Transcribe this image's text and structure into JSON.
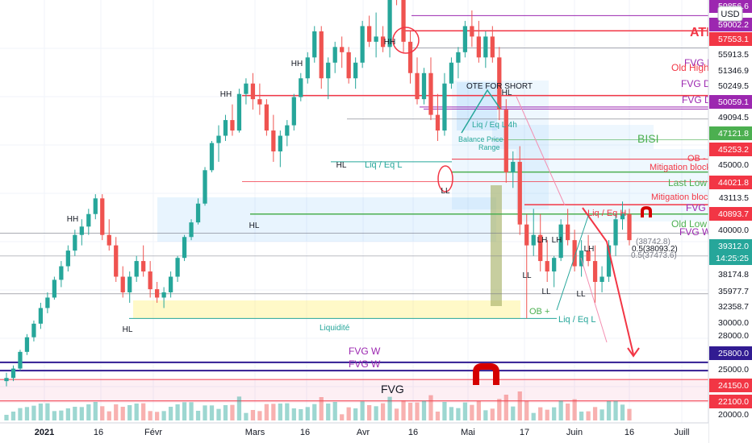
{
  "currency": "USD",
  "chart_data": {
    "type": "candlestick",
    "price_range": [
      20000,
      60500
    ],
    "x_labels": [
      "2021",
      "16",
      "Févr",
      "Mars",
      "16",
      "Avr",
      "16",
      "Mai",
      "17",
      "Juin",
      "16",
      "Juill"
    ],
    "candles": [
      [
        24000,
        24800,
        23500,
        24300
      ],
      [
        24300,
        25500,
        24000,
        25200
      ],
      [
        25200,
        27000,
        25000,
        26800
      ],
      [
        26800,
        28500,
        26500,
        28200
      ],
      [
        28200,
        29800,
        27800,
        29500
      ],
      [
        29500,
        31500,
        29000,
        31000
      ],
      [
        31000,
        32500,
        30500,
        32000
      ],
      [
        32000,
        34000,
        31800,
        33700
      ],
      [
        33700,
        35500,
        33000,
        35000
      ],
      [
        35000,
        37000,
        34500,
        36500
      ],
      [
        36500,
        38500,
        36000,
        38000
      ],
      [
        38000,
        39500,
        37000,
        38800
      ],
      [
        38800,
        40500,
        38000,
        40000
      ],
      [
        40000,
        41900,
        39500,
        41500
      ],
      [
        41500,
        41900,
        37500,
        38000
      ],
      [
        38000,
        39500,
        36500,
        37000
      ],
      [
        37000,
        37800,
        33500,
        34000
      ],
      [
        34000,
        35000,
        32000,
        32500
      ],
      [
        32500,
        34500,
        31500,
        34000
      ],
      [
        34000,
        36000,
        33500,
        35500
      ],
      [
        35500,
        37000,
        34000,
        34500
      ],
      [
        34500,
        35500,
        32000,
        32800
      ],
      [
        32800,
        33500,
        31500,
        32000
      ],
      [
        32000,
        33000,
        31000,
        32500
      ],
      [
        32500,
        34500,
        32000,
        34000
      ],
      [
        34000,
        36000,
        33500,
        35800
      ],
      [
        35800,
        38000,
        35500,
        37800
      ],
      [
        37800,
        39500,
        37500,
        39200
      ],
      [
        39200,
        41500,
        39000,
        41000
      ],
      [
        41000,
        44500,
        40800,
        44200
      ],
      [
        44200,
        47000,
        44000,
        46800
      ],
      [
        46800,
        48500,
        45000,
        47500
      ],
      [
        47500,
        49500,
        47000,
        49000
      ],
      [
        49000,
        50500,
        47500,
        48000
      ],
      [
        48000,
        52000,
        47800,
        51500
      ],
      [
        51500,
        53000,
        50500,
        52500
      ],
      [
        52500,
        53500,
        50000,
        51000
      ],
      [
        51000,
        52500,
        49500,
        50500
      ],
      [
        50500,
        51000,
        47500,
        48000
      ],
      [
        48000,
        49500,
        45000,
        46000
      ],
      [
        46000,
        48000,
        44500,
        47500
      ],
      [
        47500,
        49000,
        46500,
        48500
      ],
      [
        48500,
        51500,
        48000,
        51200
      ],
      [
        51200,
        53500,
        50800,
        53000
      ],
      [
        53000,
        55500,
        52500,
        55000
      ],
      [
        55000,
        58000,
        54500,
        57500
      ],
      [
        57500,
        58000,
        52000,
        53000
      ],
      [
        53000,
        55000,
        51000,
        54500
      ],
      [
        54500,
        56500,
        53500,
        56000
      ],
      [
        56000,
        57000,
        54000,
        55500
      ],
      [
        55500,
        56000,
        52500,
        53000
      ],
      [
        53000,
        55000,
        52000,
        54500
      ],
      [
        54500,
        58500,
        54000,
        58000
      ],
      [
        58000,
        59000,
        56000,
        56500
      ],
      [
        56500,
        59300,
        55000,
        57000
      ],
      [
        57000,
        58000,
        55500,
        56000
      ],
      [
        56000,
        64000,
        55000,
        63000
      ],
      [
        63000,
        64800,
        60000,
        61000
      ],
      [
        61000,
        62000,
        55500,
        56500
      ],
      [
        56500,
        57500,
        52500,
        53500
      ],
      [
        53500,
        55000,
        50500,
        51000
      ],
      [
        51000,
        54000,
        50500,
        53500
      ],
      [
        53500,
        55000,
        49000,
        49500
      ],
      [
        49500,
        51500,
        47000,
        48000
      ],
      [
        48000,
        53500,
        47500,
        52500
      ],
      [
        52500,
        55000,
        52000,
        54500
      ],
      [
        54500,
        56000,
        53000,
        55500
      ],
      [
        55500,
        58500,
        55000,
        58000
      ],
      [
        58000,
        59500,
        56000,
        57000
      ],
      [
        57000,
        58500,
        54500,
        55000
      ],
      [
        55000,
        57500,
        54000,
        57000
      ],
      [
        57000,
        58000,
        54500,
        55000
      ],
      [
        55000,
        56000,
        49000,
        50000
      ],
      [
        50000,
        51000,
        43000,
        44000
      ],
      [
        44000,
        46000,
        42500,
        45000
      ],
      [
        45000,
        46500,
        38000,
        39000
      ],
      [
        39000,
        40000,
        30000,
        37000
      ],
      [
        37000,
        40500,
        36000,
        38000
      ],
      [
        38000,
        40000,
        34500,
        35500
      ],
      [
        35500,
        37500,
        33500,
        34500
      ],
      [
        34500,
        36000,
        33000,
        35800
      ],
      [
        35800,
        39500,
        35500,
        39000
      ],
      [
        39000,
        40500,
        37000,
        37500
      ],
      [
        37500,
        38500,
        34500,
        35000
      ],
      [
        35000,
        37500,
        34000,
        36500
      ],
      [
        36500,
        38000,
        35000,
        35500
      ],
      [
        35500,
        37000,
        31500,
        33500
      ],
      [
        33500,
        35000,
        32500,
        34000
      ],
      [
        34000,
        37500,
        33500,
        37000
      ],
      [
        37000,
        40000,
        36000,
        39500
      ],
      [
        39500,
        41200,
        38500,
        40000
      ],
      [
        40000,
        40500,
        37000,
        37500
      ]
    ],
    "price_tags": [
      {
        "label": "59856.6",
        "bg": "#9c27b0",
        "fg": "#ffffff"
      },
      {
        "label": "59002.2",
        "bg": "#9c27b0",
        "fg": "#ffffff"
      },
      {
        "label": "57553.1",
        "bg": "#f23645",
        "fg": "#ffffff"
      },
      {
        "label": "55913.5",
        "bg": "#ffffff",
        "fg": "#131722"
      },
      {
        "label": "51346.9",
        "bg": "#ffffff",
        "fg": "#131722"
      },
      {
        "label": "50249.5",
        "bg": "#ffffff",
        "fg": "#131722"
      },
      {
        "label": "50059.1",
        "bg": "#9c27b0",
        "fg": "#ffffff"
      },
      {
        "label": "49094.5",
        "bg": "#ffffff",
        "fg": "#131722"
      },
      {
        "label": "47121.8",
        "bg": "#4caf50",
        "fg": "#ffffff"
      },
      {
        "label": "45253.2",
        "bg": "#f23645",
        "fg": "#ffffff"
      },
      {
        "label": "45000.0",
        "bg": "#ffffff",
        "fg": "#131722"
      },
      {
        "label": "44021.8",
        "bg": "#f23645",
        "fg": "#ffffff"
      },
      {
        "label": "43113.5",
        "bg": "#ffffff",
        "fg": "#131722"
      },
      {
        "label": "40893.7",
        "bg": "#f23645",
        "fg": "#ffffff"
      },
      {
        "label": "40000.0",
        "bg": "#ffffff",
        "fg": "#131722"
      },
      {
        "label": "39312.0",
        "bg": "#26a69a",
        "fg": "#ffffff"
      },
      {
        "label": "14:25:25",
        "bg": "#26a69a",
        "fg": "#ffffff"
      },
      {
        "label": "38174.8",
        "bg": "#ffffff",
        "fg": "#131722"
      },
      {
        "label": "35977.7",
        "bg": "#ffffff",
        "fg": "#131722"
      },
      {
        "label": "32358.7",
        "bg": "#ffffff",
        "fg": "#131722"
      },
      {
        "label": "30000.0",
        "bg": "#ffffff",
        "fg": "#131722"
      },
      {
        "label": "28000.0",
        "bg": "#ffffff",
        "fg": "#131722"
      },
      {
        "label": "25800.0",
        "bg": "#311b92",
        "fg": "#ffffff"
      },
      {
        "label": "25000.0",
        "bg": "#ffffff",
        "fg": "#131722"
      },
      {
        "label": "24150.0",
        "bg": "#f23645",
        "fg": "#ffffff"
      },
      {
        "label": "22100.0",
        "bg": "#f23645",
        "fg": "#ffffff"
      },
      {
        "label": "20000.0",
        "bg": "#ffffff",
        "fg": "#131722"
      }
    ],
    "annotations": [
      {
        "text": "ATH",
        "color": "#f23645",
        "bold": true
      },
      {
        "text": "HH",
        "color": "#131722"
      },
      {
        "text": "HH",
        "color": "#131722"
      },
      {
        "text": "HH",
        "color": "#131722"
      },
      {
        "text": "HH",
        "color": "#131722"
      },
      {
        "text": "HL",
        "color": "#131722"
      },
      {
        "text": "HL",
        "color": "#131722"
      },
      {
        "text": "HL",
        "color": "#131722"
      },
      {
        "text": "HL",
        "color": "#131722"
      },
      {
        "text": "LL",
        "color": "#131722"
      },
      {
        "text": "LH",
        "color": "#131722"
      },
      {
        "text": "LH",
        "color": "#131722"
      },
      {
        "text": "LH",
        "color": "#131722"
      },
      {
        "text": "LL",
        "color": "#131722"
      },
      {
        "text": "LL",
        "color": "#131722"
      },
      {
        "text": "LL",
        "color": "#131722"
      },
      {
        "text": "FVG D",
        "color": "#9c27b0"
      },
      {
        "text": "Old High",
        "color": "#f23645"
      },
      {
        "text": "FVG D",
        "color": "#9c27b0"
      },
      {
        "text": "FVG D",
        "color": "#9c27b0"
      },
      {
        "text": "OTE FOR SHORT",
        "color": "#131722"
      },
      {
        "text": "Liq / Eq L 4h",
        "color": "#26a69a"
      },
      {
        "text": "Balance Price",
        "color": "#26a69a"
      },
      {
        "text": "Range",
        "color": "#26a69a"
      },
      {
        "text": "BISI",
        "color": "#4caf50"
      },
      {
        "text": "Liq / Eq L",
        "color": "#26a69a"
      },
      {
        "text": "OB -",
        "color": "#f23645"
      },
      {
        "text": "Mitigation block",
        "color": "#f23645"
      },
      {
        "text": "Last Low",
        "color": "#4caf50"
      },
      {
        "text": "Mitigation block",
        "color": "#f23645"
      },
      {
        "text": "FVG W",
        "color": "#9c27b0"
      },
      {
        "text": "Liq / Eq H",
        "color": "#f23645"
      },
      {
        "text": "Old Low",
        "color": "#4caf50"
      },
      {
        "text": "FVG W",
        "color": "#9c27b0"
      },
      {
        "text": "0.5(38093.2)",
        "color": "#131722"
      },
      {
        "text": "(38742.8)",
        "color": "#787b86"
      },
      {
        "text": "0.5(37473.6)",
        "color": "#787b86"
      },
      {
        "text": "Liquidité",
        "color": "#26a69a"
      },
      {
        "text": "OB +",
        "color": "#4caf50"
      },
      {
        "text": "Liq / Eq L",
        "color": "#26a69a"
      },
      {
        "text": "FVG W",
        "color": "#9c27b0"
      },
      {
        "text": "FVG W",
        "color": "#9c27b0"
      },
      {
        "text": "FVG",
        "color": "#131722"
      }
    ]
  },
  "colors": {
    "up": "#26a69a",
    "down": "#ef5350",
    "axis_bg": "#ffffff",
    "grid": "#f0f3fa",
    "purple": "#9c27b0",
    "navy": "#311b92",
    "green": "#4caf50",
    "red": "#f23645"
  }
}
